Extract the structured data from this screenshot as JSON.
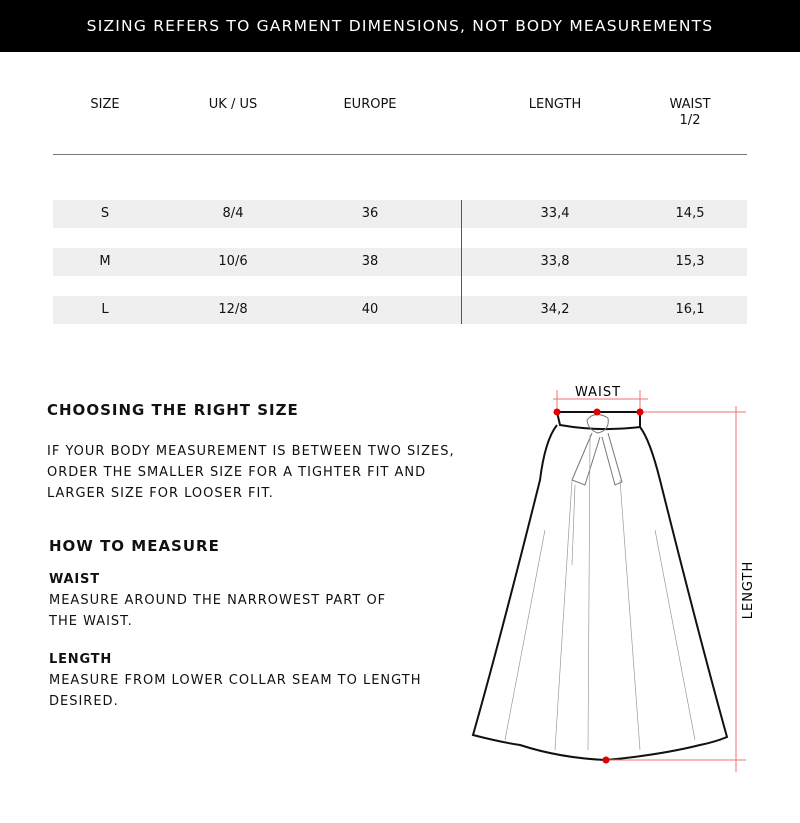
{
  "banner": "SIZING REFERS TO GARMENT DIMENSIONS, NOT BODY MEASUREMENTS",
  "table": {
    "headers": [
      "SIZE",
      "UK / US",
      "EUROPE",
      "LENGTH",
      "WAIST",
      "1/2"
    ],
    "rows": [
      [
        "S",
        "8/4",
        "36",
        "33,4",
        "14,5"
      ],
      [
        "M",
        "10/6",
        "38",
        "33,8",
        "15,3"
      ],
      [
        "L",
        "12/8",
        "40",
        "34,2",
        "16,1"
      ]
    ]
  },
  "choosing": {
    "title": "CHOOSING THE RIGHT SIZE",
    "lines": [
      "IF YOUR BODY MEASUREMENT IS BETWEEN TWO SIZES,",
      "ORDER THE SMALLER SIZE FOR A TIGHTER FIT AND",
      "LARGER SIZE FOR LOOSER FIT."
    ]
  },
  "measure": {
    "title": "HOW TO MEASURE",
    "waist_title": "WAIST",
    "waist_lines": [
      "MEASURE AROUND THE NARROWEST PART OF",
      "THE WAIST."
    ],
    "length_title": "LENGTH",
    "length_lines": [
      "MEASURE FROM LOWER COLLAR SEAM TO LENGTH",
      "DESIRED."
    ]
  },
  "diagram": {
    "waist_label": "WAIST",
    "length_label": "LENGTH",
    "accent": "#e00000"
  }
}
